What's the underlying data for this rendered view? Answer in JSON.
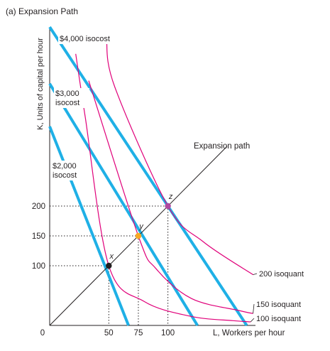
{
  "chart_data": {
    "type": "line",
    "title": "(a) Expansion Path",
    "xlabel": "L, Workers per hour",
    "ylabel": "K, Units of capital per hour",
    "origin_label": "0",
    "xlim": [
      0,
      270
    ],
    "ylim": [
      0,
      500
    ],
    "x_ticks": [
      50,
      75,
      100
    ],
    "y_ticks": [
      100,
      150,
      200
    ],
    "grid": false,
    "colors": {
      "isocost": "#1fb0e6",
      "isoquant": "#e0007a",
      "expansion": "#231f20",
      "axis": "#231f20",
      "point_x": "#231f20",
      "point_y": "#f7a823",
      "point_z": "#b04aa0"
    },
    "isocost_lines": [
      {
        "label": "$2,000 isocost",
        "l_intercept": 66.67,
        "k_intercept": 333.3
      },
      {
        "label": "$3,000 isocost",
        "l_intercept": 125,
        "k_intercept": 405
      },
      {
        "label": "$4,000 isocost",
        "l_intercept": 166.67,
        "k_intercept": 500
      }
    ],
    "isoquants": [
      {
        "label": "100 isoquant",
        "points": [
          [
            22,
            455
          ],
          [
            30,
            350
          ],
          [
            50,
            100
          ],
          [
            80,
            40
          ],
          [
            120,
            15
          ],
          [
            155,
            8
          ],
          [
            170,
            6
          ]
        ]
      },
      {
        "label": "150 isoquant",
        "points": [
          [
            33,
            410
          ],
          [
            75,
            150
          ],
          [
            90,
            95
          ],
          [
            120,
            45
          ],
          [
            160,
            25
          ],
          [
            172,
            20
          ]
        ]
      },
      {
        "label": "200 isoquant",
        "points": [
          [
            48,
            480
          ],
          [
            55,
            400
          ],
          [
            100,
            200
          ],
          [
            130,
            140
          ],
          [
            172,
            85
          ]
        ]
      }
    ],
    "expansion_path": {
      "label": "Expansion path",
      "points": [
        [
          0,
          0
        ],
        [
          150,
          300
        ]
      ]
    },
    "points": [
      {
        "label": "x",
        "L": 50,
        "K": 100
      },
      {
        "label": "y",
        "L": 75,
        "K": 150
      },
      {
        "label": "z",
        "L": 100,
        "K": 200
      }
    ]
  }
}
